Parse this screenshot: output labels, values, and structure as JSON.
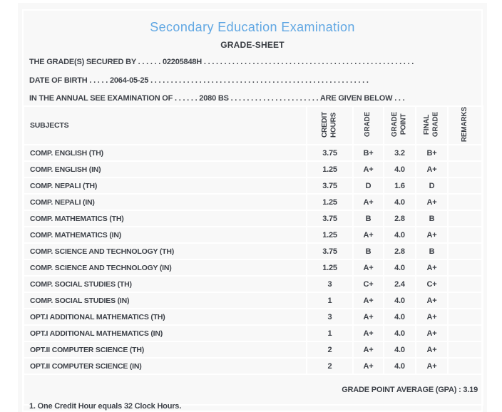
{
  "header": {
    "title": "Secondary Education Examination",
    "subtitle": "GRADE-SHEET",
    "info_lines": [
      "THE GRADE(S) SECURED BY . . . . . . 02205848H . . . . . . . . . . . . . . . . . . . . . . . . . . . . . . . . . . . . . . . . . . . . . . . . . . . .",
      "DATE OF BIRTH . . . . . 2064-05-25 . . . . . . . . . . . . . . . . . . . . . . . . . . . . . . . . . . . . . . . . . . . . . . . . . . . . . .",
      "IN THE ANNUAL SEE EXAMINATION OF . . . . . . 2080 BS . . . . . . . . . . . . . . . . . . . . . . ARE GIVEN BELOW . . ."
    ]
  },
  "student": {
    "symbol_number": "02205848H",
    "date_of_birth": "2064-05-25",
    "examination_year": "2080 BS"
  },
  "table": {
    "columns": [
      "SUBJECTS",
      "CREDIT\nHOURS",
      "GRADE",
      "GRADE\nPOINT",
      "FINAL\nGRADE",
      "REMARKS"
    ],
    "rows": [
      {
        "subject": "COMP. ENGLISH (TH)",
        "credit_hours": "3.75",
        "grade": "B+",
        "grade_point": "3.2",
        "final_grade": "B+",
        "remarks": ""
      },
      {
        "subject": "COMP. ENGLISH (IN)",
        "credit_hours": "1.25",
        "grade": "A+",
        "grade_point": "4.0",
        "final_grade": "A+",
        "remarks": ""
      },
      {
        "subject": "COMP. NEPALI (TH)",
        "credit_hours": "3.75",
        "grade": "D",
        "grade_point": "1.6",
        "final_grade": "D",
        "remarks": ""
      },
      {
        "subject": "COMP. NEPALI (IN)",
        "credit_hours": "1.25",
        "grade": "A+",
        "grade_point": "4.0",
        "final_grade": "A+",
        "remarks": ""
      },
      {
        "subject": "COMP. MATHEMATICS (TH)",
        "credit_hours": "3.75",
        "grade": "B",
        "grade_point": "2.8",
        "final_grade": "B",
        "remarks": ""
      },
      {
        "subject": "COMP. MATHEMATICS (IN)",
        "credit_hours": "1.25",
        "grade": "A+",
        "grade_point": "4.0",
        "final_grade": "A+",
        "remarks": ""
      },
      {
        "subject": "COMP. SCIENCE AND TECHNOLOGY (TH)",
        "credit_hours": "3.75",
        "grade": "B",
        "grade_point": "2.8",
        "final_grade": "B",
        "remarks": ""
      },
      {
        "subject": "COMP. SCIENCE AND TECHNOLOGY (IN)",
        "credit_hours": "1.25",
        "grade": "A+",
        "grade_point": "4.0",
        "final_grade": "A+",
        "remarks": ""
      },
      {
        "subject": "COMP. SOCIAL STUDIES (TH)",
        "credit_hours": "3",
        "grade": "C+",
        "grade_point": "2.4",
        "final_grade": "C+",
        "remarks": ""
      },
      {
        "subject": "COMP. SOCIAL STUDIES (IN)",
        "credit_hours": "1",
        "grade": "A+",
        "grade_point": "4.0",
        "final_grade": "A+",
        "remarks": ""
      },
      {
        "subject": "OPT.I ADDITIONAL MATHEMATICS (TH)",
        "credit_hours": "3",
        "grade": "A+",
        "grade_point": "4.0",
        "final_grade": "A+",
        "remarks": ""
      },
      {
        "subject": "OPT.I ADDITIONAL MATHEMATICS (IN)",
        "credit_hours": "1",
        "grade": "A+",
        "grade_point": "4.0",
        "final_grade": "A+",
        "remarks": ""
      },
      {
        "subject": "OPT.II COMPUTER SCIENCE (TH)",
        "credit_hours": "2",
        "grade": "A+",
        "grade_point": "4.0",
        "final_grade": "A+",
        "remarks": ""
      },
      {
        "subject": "OPT.II COMPUTER SCIENCE (IN)",
        "credit_hours": "2",
        "grade": "A+",
        "grade_point": "4.0",
        "final_grade": "A+",
        "remarks": ""
      }
    ],
    "gpa_line": "GRADE POINT AVERAGE (GPA) : 3.19",
    "gpa_value": "3.19"
  },
  "footnote": "1. One Credit Hour equals 32 Clock Hours.",
  "colors": {
    "title_blue": "#60a7e3",
    "text": "#3e4249",
    "panel_bg": "#f8f8f8",
    "divider": "#ffffff"
  }
}
